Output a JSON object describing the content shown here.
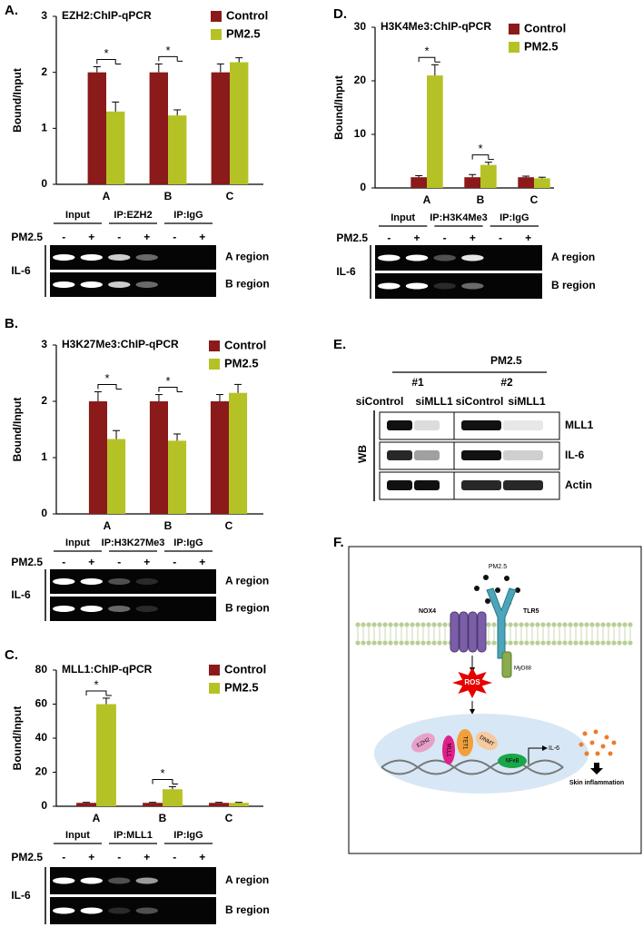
{
  "chart_data": [
    {
      "type": "bar",
      "label": "A.",
      "title": "EZH2:ChIP-qPCR",
      "y_label": "Bound/Input",
      "categories": [
        "A",
        "B",
        "C"
      ],
      "series": [
        {
          "name": "Control",
          "color": "#8b1a1a",
          "values": [
            2.0,
            2.0,
            2.0
          ],
          "errors": [
            0.1,
            0.15,
            0.15
          ]
        },
        {
          "name": "PM2.5",
          "color": "#b5c225",
          "values": [
            1.3,
            1.23,
            2.18
          ],
          "errors": [
            0.17,
            0.1,
            0.08
          ]
        }
      ],
      "significance": [
        "*",
        "*",
        null
      ],
      "ylim": [
        0,
        3
      ],
      "yticks": [
        0,
        1,
        2,
        3
      ]
    },
    {
      "type": "bar",
      "label": "B.",
      "title": "H3K27Me3:ChIP-qPCR",
      "y_label": "Bound/Input",
      "categories": [
        "A",
        "B",
        "C"
      ],
      "series": [
        {
          "name": "Control",
          "color": "#8b1a1a",
          "values": [
            2.0,
            2.0,
            2.0
          ],
          "errors": [
            0.17,
            0.12,
            0.12
          ]
        },
        {
          "name": "PM2.5",
          "color": "#b5c225",
          "values": [
            1.33,
            1.3,
            2.15
          ],
          "errors": [
            0.15,
            0.12,
            0.15
          ]
        }
      ],
      "significance": [
        "*",
        "*",
        null
      ],
      "ylim": [
        0,
        3
      ],
      "yticks": [
        0,
        1,
        2,
        3
      ]
    },
    {
      "type": "bar",
      "label": "C.",
      "title": "MLL1:ChIP-qPCR",
      "y_label": "Bound/Input",
      "categories": [
        "A",
        "B",
        "C"
      ],
      "series": [
        {
          "name": "Control",
          "color": "#8b1a1a",
          "values": [
            2,
            2,
            2
          ],
          "errors": [
            0.3,
            0.3,
            0.3
          ]
        },
        {
          "name": "PM2.5",
          "color": "#b5c225",
          "values": [
            60,
            10,
            2
          ],
          "errors": [
            3.5,
            1.5,
            0.3
          ]
        }
      ],
      "significance": [
        "*",
        "*",
        null
      ],
      "ylim": [
        0,
        80
      ],
      "yticks": [
        0,
        20,
        40,
        60,
        80
      ]
    },
    {
      "type": "bar",
      "label": "D.",
      "title": "H3K4Me3:ChIP-qPCR",
      "y_label": "Bound/Input",
      "categories": [
        "A",
        "B",
        "C"
      ],
      "series": [
        {
          "name": "Control",
          "color": "#8b1a1a",
          "values": [
            2,
            2,
            2
          ],
          "errors": [
            0.3,
            0.5,
            0.2
          ]
        },
        {
          "name": "PM2.5",
          "color": "#b5c225",
          "values": [
            21,
            4.3,
            1.8
          ],
          "errors": [
            2,
            0.5,
            0.2
          ]
        }
      ],
      "significance": [
        "*",
        "*",
        null
      ],
      "ylim": [
        0,
        30
      ],
      "yticks": [
        0,
        10,
        20,
        30
      ]
    }
  ],
  "gels": [
    {
      "groups": [
        "Input",
        "IP:EZH2",
        "IP:IgG"
      ],
      "treatment": "PM2.5",
      "signs": [
        "-",
        "+",
        "-",
        "+",
        "-",
        "+"
      ],
      "gene": "IL-6",
      "regions": [
        "A region",
        "B region"
      ]
    },
    {
      "groups": [
        "Input",
        "IP:H3K27Me3",
        "IP:IgG"
      ],
      "treatment": "PM2.5",
      "signs": [
        "-",
        "+",
        "-",
        "+",
        "-",
        "+"
      ],
      "gene": "IL-6",
      "regions": [
        "A region",
        "B region"
      ]
    },
    {
      "groups": [
        "Input",
        "IP:MLL1",
        "IP:IgG"
      ],
      "treatment": "PM2.5",
      "signs": [
        "-",
        "+",
        "-",
        "+",
        "-",
        "+"
      ],
      "gene": "IL-6",
      "regions": [
        "A region",
        "B region"
      ]
    },
    {
      "groups": [
        "Input",
        "IP:H3K4Me3",
        "IP:IgG"
      ],
      "treatment": "PM2.5",
      "signs": [
        "-",
        "+",
        "-",
        "+",
        "-",
        "+"
      ],
      "gene": "IL-6",
      "regions": [
        "A region",
        "B region"
      ]
    }
  ],
  "western": {
    "label": "E.",
    "treatment": "PM2.5",
    "groups": [
      "#1",
      "#2"
    ],
    "lanes": [
      "siControl",
      "siMLL1",
      "siControl",
      "siMLL1"
    ],
    "method": "WB",
    "proteins": [
      "MLL1",
      "IL-6",
      "Actin"
    ]
  },
  "diagram": {
    "label": "F.",
    "particle": "PM2.5",
    "receptors": [
      "NOX4",
      "TLR5"
    ],
    "adaptor": "MyD88",
    "signal": "ROS",
    "nuclear_factors": [
      "EZH2",
      "MLL1",
      "TET1",
      "DNMT",
      "NFκB"
    ],
    "output": "IL-6",
    "outcome": "Skin inflammation"
  }
}
